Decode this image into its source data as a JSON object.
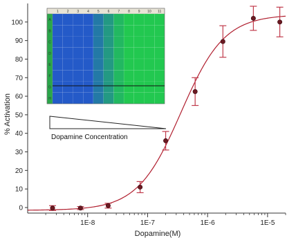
{
  "chart_data": {
    "type": "scatter",
    "xlabel": "Dopamine(M)",
    "ylabel": "% Activation",
    "x_scale": "log",
    "xlim": [
      1e-09,
      2e-05
    ],
    "ylim": [
      -3,
      110
    ],
    "yticks": [
      0,
      10,
      20,
      30,
      40,
      50,
      60,
      70,
      80,
      90,
      100
    ],
    "xticks": [
      {
        "value": 1e-08,
        "label": "1E-8"
      },
      {
        "value": 1e-07,
        "label": "1E-7"
      },
      {
        "value": 1e-06,
        "label": "1E-6"
      },
      {
        "value": 1e-05,
        "label": "1E-5"
      }
    ],
    "series": [
      {
        "x": [
          2.6e-09,
          7.6e-09,
          2.2e-08,
          7.5e-08,
          2e-07,
          6.2e-07,
          1.8e-06,
          5.8e-06,
          1.6e-05
        ],
        "y": [
          -0.3,
          -0.3,
          1.0,
          11.0,
          36.0,
          62.5,
          89.5,
          102.0,
          100.0
        ],
        "error": [
          1.3,
          0.8,
          1.3,
          3.0,
          5.0,
          7.5,
          8.5,
          6.5,
          8.0
        ]
      }
    ],
    "fit_curve": {
      "bottom": -1.5,
      "top": 104,
      "ec50": 3.6e-07,
      "hill": 1.2
    },
    "colors": {
      "points": "#6b1a22",
      "error_bars": "#c0394a",
      "fit_line": "#b01e2e"
    },
    "inset": {
      "plate_columns": [
        "1",
        "2",
        "3",
        "4",
        "5",
        "6",
        "7",
        "8",
        "9",
        "10",
        "11"
      ],
      "plate_rows": [
        "A",
        "B",
        "C",
        "D",
        "E",
        "F",
        "G",
        "H"
      ],
      "gradient_label": "Dopamine Concentration"
    }
  }
}
